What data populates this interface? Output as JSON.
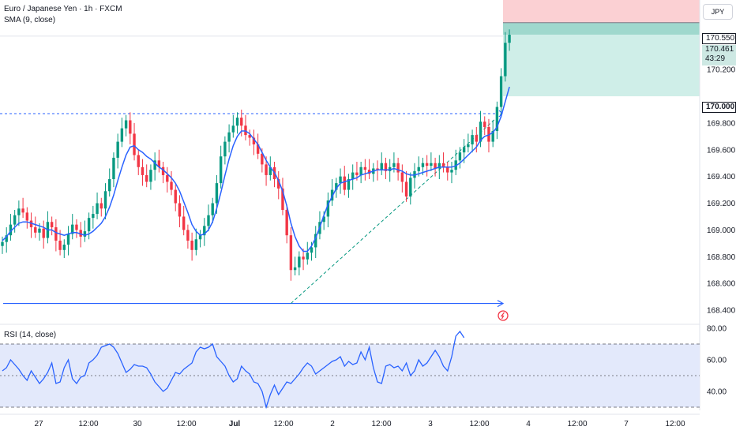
{
  "header": {
    "symbol_title": "Euro / Japanese Yen · 1h · FXCM",
    "sma_label": "SMA (9, close)",
    "rsi_label": "RSI (14, close)",
    "currency": "JPY"
  },
  "price_tags": {
    "entry": "170.550",
    "last_price": "170.461",
    "countdown": "43:29",
    "take_profit": "170.000"
  },
  "colors": {
    "up": "#089981",
    "down": "#f23645",
    "sma": "#2962ff",
    "rsi_line": "#2962ff",
    "rsi_band": "#e3e9fb",
    "stop_zone": "#fbd0d3",
    "target_zone": "#cfeee8"
  },
  "chart_data": [
    {
      "type": "candlestick",
      "title": "Euro / Japanese Yen · 1h · FXCM",
      "ylim": [
        168.3,
        170.72
      ],
      "y_ticks": [
        "170.200",
        "169.800",
        "169.600",
        "169.400",
        "169.200",
        "169.000",
        "168.800",
        "168.600",
        "168.400"
      ],
      "x_ticks": [
        "27",
        "12:00",
        "30",
        "12:00",
        "Jul",
        "12:00",
        "2",
        "12:00",
        "3",
        "12:00",
        "4",
        "12:00",
        "7",
        "12:00"
      ],
      "close": [
        168.91,
        168.96,
        169.04,
        169.11,
        169.16,
        169.13,
        169.07,
        169.02,
        168.98,
        169.01,
        168.94,
        169.06,
        169.02,
        168.92,
        168.85,
        168.89,
        168.97,
        169.04,
        169.0,
        168.95,
        168.99,
        169.09,
        169.12,
        169.2,
        169.16,
        169.29,
        169.38,
        169.54,
        169.66,
        169.76,
        169.82,
        169.72,
        169.56,
        169.47,
        169.41,
        169.36,
        169.45,
        169.52,
        169.47,
        169.41,
        169.36,
        169.3,
        169.2,
        169.1,
        169.0,
        168.92,
        168.85,
        168.93,
        168.96,
        169.03,
        169.11,
        169.2,
        169.35,
        169.55,
        169.66,
        169.73,
        169.78,
        169.84,
        169.78,
        169.71,
        169.69,
        169.64,
        169.57,
        169.49,
        169.41,
        169.47,
        169.38,
        169.31,
        169.15,
        168.96,
        168.7,
        168.72,
        168.8,
        168.78,
        168.83,
        168.87,
        168.97,
        169.06,
        169.1,
        169.22,
        169.3,
        169.35,
        169.4,
        169.3,
        169.38,
        169.43,
        169.41,
        169.47,
        169.45,
        169.42,
        169.46,
        169.45,
        169.5,
        169.44,
        169.47,
        169.5,
        169.43,
        169.36,
        169.25,
        169.39,
        169.44,
        169.47,
        169.5,
        169.48,
        169.5,
        169.46,
        169.5,
        169.47,
        169.43,
        169.45,
        169.52,
        169.58,
        169.62,
        169.64,
        169.71,
        169.66,
        169.81,
        169.77,
        169.66,
        169.74,
        169.92,
        170.15,
        170.4,
        170.46
      ],
      "sma": [
        168.92,
        168.95,
        168.99,
        169.02,
        169.05,
        169.06,
        169.06,
        169.05,
        169.04,
        169.03,
        169.02,
        169.0,
        169.0,
        168.98,
        168.97,
        168.96,
        168.97,
        168.98,
        168.98,
        168.97,
        168.96,
        168.97,
        168.99,
        169.02,
        169.05,
        169.1,
        169.17,
        169.26,
        169.37,
        169.47,
        169.56,
        169.62,
        169.63,
        169.6,
        169.58,
        169.55,
        169.53,
        169.5,
        169.47,
        169.45,
        169.42,
        169.39,
        169.35,
        169.29,
        169.21,
        169.13,
        169.04,
        168.99,
        168.96,
        168.97,
        169.0,
        169.06,
        169.16,
        169.28,
        169.41,
        169.53,
        169.63,
        169.7,
        169.74,
        169.74,
        169.72,
        169.68,
        169.64,
        169.58,
        169.52,
        169.47,
        169.43,
        169.37,
        169.29,
        169.18,
        169.05,
        168.95,
        168.88,
        168.84,
        168.84,
        168.88,
        168.94,
        169.02,
        169.11,
        169.19,
        169.25,
        169.31,
        169.35,
        169.36,
        169.37,
        169.38,
        169.39,
        169.41,
        169.42,
        169.43,
        169.44,
        169.45,
        169.45,
        169.45,
        169.45,
        169.46,
        169.45,
        169.44,
        169.42,
        169.41,
        169.41,
        169.42,
        169.43,
        169.44,
        169.45,
        169.46,
        169.47,
        169.47,
        169.47,
        169.47,
        169.48,
        169.5,
        169.53,
        169.56,
        169.59,
        169.62,
        169.67,
        169.7,
        169.71,
        169.73,
        169.77,
        169.85,
        169.96,
        170.07
      ],
      "horizontal_levels": [
        169.87,
        168.45
      ],
      "position_tool": {
        "entry": 170.55,
        "stop_top": 170.72,
        "target": 170.0,
        "last": 170.461
      },
      "trendline": [
        [
          70,
          168.45
        ],
        [
          121,
          169.87
        ]
      ]
    },
    {
      "type": "line",
      "title": "RSI (14, close)",
      "ylim": [
        28,
        82
      ],
      "y_ticks": [
        "80.00",
        "60.00",
        "40.00"
      ],
      "levels": [
        70,
        50,
        30
      ],
      "values": [
        53,
        55,
        60,
        57,
        54,
        50,
        47,
        53,
        49,
        45,
        48,
        52,
        58,
        45,
        46,
        55,
        60,
        48,
        45,
        49,
        50,
        58,
        60,
        63,
        68,
        69,
        70,
        68,
        64,
        58,
        52,
        54,
        57,
        56,
        56,
        55,
        51,
        46,
        43,
        40,
        42,
        47,
        52,
        51,
        54,
        56,
        58,
        65,
        68,
        67,
        68,
        70,
        62,
        59,
        56,
        50,
        46,
        48,
        56,
        53,
        51,
        46,
        45,
        40,
        30,
        38,
        44,
        38,
        42,
        46,
        45,
        48,
        51,
        55,
        58,
        56,
        51,
        53,
        55,
        57,
        59,
        60,
        62,
        56,
        59,
        57,
        58,
        65,
        60,
        68,
        55,
        46,
        45,
        56,
        57,
        55,
        56,
        53,
        58,
        50,
        53,
        60,
        56,
        58,
        62,
        66,
        62,
        56,
        53,
        62,
        75,
        78,
        74
      ]
    }
  ]
}
